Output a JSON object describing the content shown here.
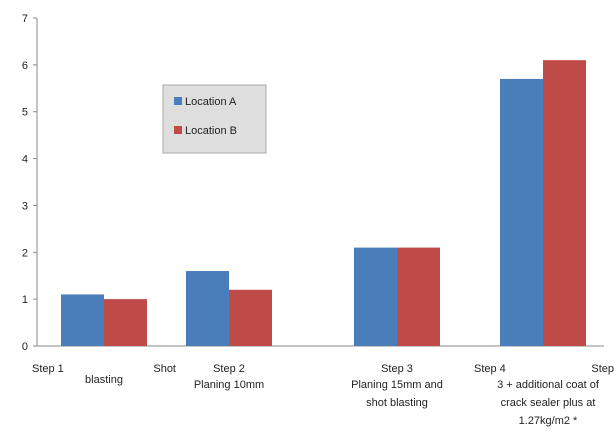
{
  "chart_data": {
    "type": "bar",
    "categories": [
      {
        "lines": [
          {
            "text": "Step 1",
            "anchor": "start"
          },
          {
            "text": "Shot",
            "anchor": "end"
          },
          {
            "text": "blasting",
            "anchor": "middle"
          }
        ]
      },
      {
        "lines": [
          {
            "text": "Step 2",
            "anchor": "middle"
          },
          {
            "text": "Planing 10mm",
            "anchor": "middle"
          }
        ]
      },
      {
        "lines": [
          {
            "text": "Step 3",
            "anchor": "middle"
          },
          {
            "text": "Planing 15mm and",
            "anchor": "middle"
          },
          {
            "text": "shot blasting",
            "anchor": "middle"
          }
        ]
      },
      {
        "lines": [
          {
            "text": "Step 4",
            "anchor": "start"
          },
          {
            "text": "Step",
            "anchor": "end"
          },
          {
            "text": "3 + additional coat of",
            "anchor": "middle"
          },
          {
            "text": "crack sealer plus at",
            "anchor": "middle"
          },
          {
            "text": "1.27kg/m2 *",
            "anchor": "middle"
          }
        ]
      }
    ],
    "series": [
      {
        "name": "Location A",
        "color": "#4a7ebb",
        "values": [
          1.1,
          1.6,
          2.1,
          5.7
        ]
      },
      {
        "name": "Location B",
        "color": "#be4b48",
        "values": [
          1.0,
          1.2,
          2.1,
          6.1
        ]
      }
    ],
    "yticks": [
      0,
      1,
      2,
      3,
      4,
      5,
      6,
      7
    ],
    "ylim": [
      0,
      7
    ],
    "legend_position": "top-left",
    "grid": false
  }
}
